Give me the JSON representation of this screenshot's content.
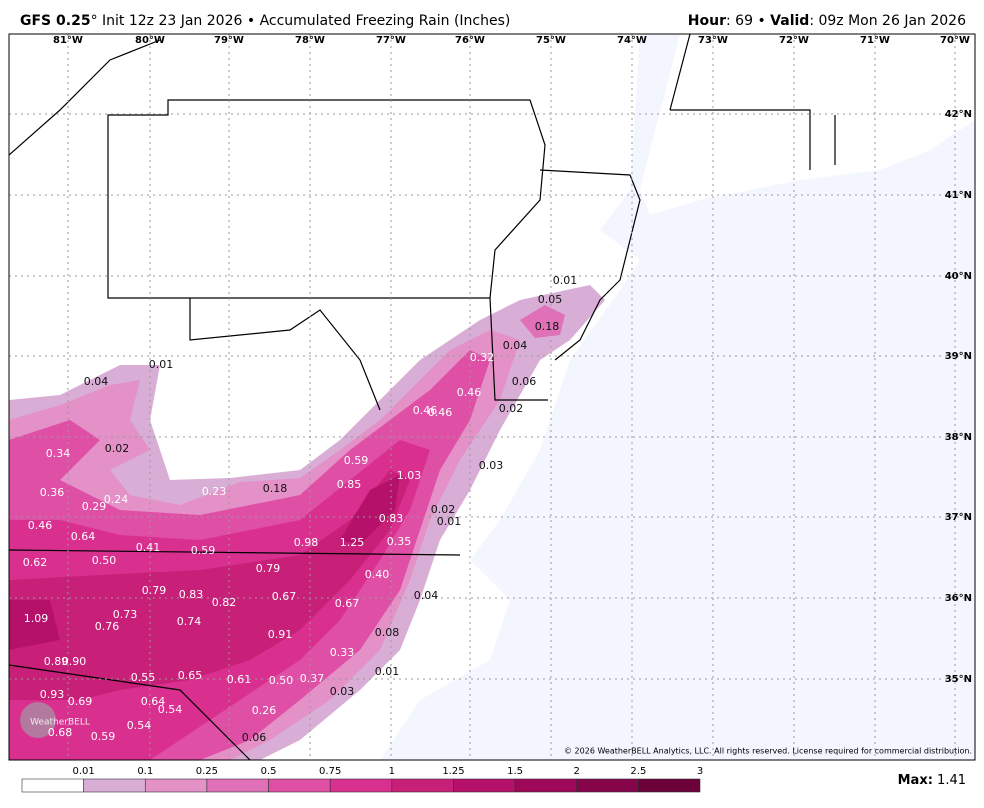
{
  "header": {
    "model": "GFS 0.25",
    "degree": "°",
    "init": "Init 12z 23 Jan 2026",
    "separator": "•",
    "product": "Accumulated Freezing Rain (Inches)",
    "hour_label": "Hour",
    "hour": ": 69",
    "valid_label": "Valid",
    "valid": ": 09z Mon 26 Jan 2026"
  },
  "longitudes": [
    "81°W",
    "80°W",
    "79°W",
    "78°W",
    "77°W",
    "76°W",
    "75°W",
    "74°W",
    "73°W",
    "72°W",
    "71°W",
    "70°W"
  ],
  "latitudes": [
    "42°N",
    "41°N",
    "40°N",
    "39°N",
    "38°N",
    "37°N",
    "36°N",
    "35°N"
  ],
  "labels": [
    "0.01",
    "0.05",
    "0.18",
    "0.04",
    "0.32",
    "0.06",
    "0.46",
    "0.02",
    "0.46",
    "0.46",
    "0.01",
    "0.04",
    "0.34",
    "0.02",
    "0.59",
    "1.03",
    "0.03",
    "0.36",
    "0.29",
    "0.24",
    "0.23",
    "0.18",
    "0.85",
    "0.02",
    "0.01",
    "0.83",
    "0.46",
    "0.64",
    "0.41",
    "0.59",
    "0.98",
    "1.25",
    "0.35",
    "0.62",
    "0.50",
    "0.79",
    "0.40",
    "0.79",
    "0.83",
    "0.82",
    "0.67",
    "0.67",
    "0.04",
    "1.09",
    "0.76",
    "0.73",
    "0.74",
    "0.91",
    "0.08",
    "0.33",
    "0.89",
    "0.90",
    "0.01",
    "0.55",
    "0.65",
    "0.61",
    "0.50",
    "0.37",
    "0.03",
    "0.93",
    "0.69",
    "0.64",
    "0.54",
    "0.26",
    "0.54",
    "0.68",
    "0.59",
    "0.06"
  ],
  "copyright": "© 2026 WeatherBELL Analytics, LLC. All rights reserved. License required for commercial distribution.",
  "logo": "WeatherBELL",
  "colorbar": [
    "0.01",
    "0.1",
    "0.25",
    "0.5",
    "0.75",
    "1",
    "1.25",
    "1.5",
    "2",
    "2.5",
    "3"
  ],
  "max_label": "Max:",
  "max": "1.41"
}
